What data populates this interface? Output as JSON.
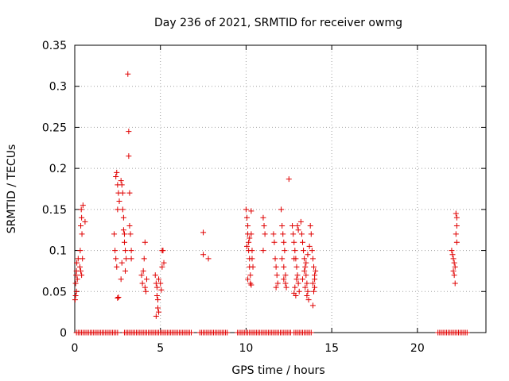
{
  "chart_data": {
    "type": "scatter",
    "title": "Day 236 of 2021, SRMTID for receiver owmg",
    "xlabel": "GPS time / hours",
    "ylabel": "SRMTID / TECUs",
    "xlim": [
      0,
      24
    ],
    "ylim": [
      0,
      0.35
    ],
    "xticks": [
      0,
      5,
      10,
      15,
      20
    ],
    "yticks": [
      0,
      0.05,
      0.1,
      0.15,
      0.2,
      0.25,
      0.3,
      0.35
    ],
    "xtick_labels": [
      "0",
      "5",
      "10",
      "15",
      "20"
    ],
    "ytick_labels": [
      "0",
      "0.05",
      "0.1",
      "0.15",
      "0.2",
      "0.25",
      "0.3",
      "0.35"
    ],
    "grid": true,
    "marker": "+",
    "color": "#e00000",
    "series": [
      {
        "name": "SRMTID",
        "points": [
          [
            0.05,
            0.045
          ],
          [
            0.05,
            0.06
          ],
          [
            0.08,
            0.07
          ],
          [
            0.1,
            0.05
          ],
          [
            0.1,
            0.075
          ],
          [
            0.12,
            0.085
          ],
          [
            0.15,
            0.065
          ],
          [
            0.2,
            0.09
          ],
          [
            0.02,
            0.04
          ],
          [
            0.3,
            0.08
          ],
          [
            0.32,
            0.1
          ],
          [
            0.35,
            0.13
          ],
          [
            0.38,
            0.15
          ],
          [
            0.4,
            0.14
          ],
          [
            0.42,
            0.12
          ],
          [
            0.45,
            0.09
          ],
          [
            0.48,
            0.155
          ],
          [
            0.35,
            0.075
          ],
          [
            0.4,
            0.07
          ],
          [
            0.6,
            0.135
          ],
          [
            2.4,
            0.19
          ],
          [
            2.45,
            0.195
          ],
          [
            2.5,
            0.18
          ],
          [
            2.5,
            0.15
          ],
          [
            2.55,
            0.17
          ],
          [
            2.6,
            0.16
          ],
          [
            2.3,
            0.12
          ],
          [
            2.35,
            0.1
          ],
          [
            2.4,
            0.09
          ],
          [
            2.45,
            0.08
          ],
          [
            2.5,
            0.042
          ],
          [
            2.55,
            0.043
          ],
          [
            2.7,
            0.185
          ],
          [
            2.75,
            0.18
          ],
          [
            2.8,
            0.15
          ],
          [
            2.8,
            0.17
          ],
          [
            2.85,
            0.14
          ],
          [
            2.85,
            0.125
          ],
          [
            2.9,
            0.12
          ],
          [
            2.9,
            0.11
          ],
          [
            2.95,
            0.1
          ],
          [
            3.0,
            0.09
          ],
          [
            2.7,
            0.065
          ],
          [
            2.75,
            0.085
          ],
          [
            2.95,
            0.075
          ],
          [
            3.1,
            0.315
          ],
          [
            3.15,
            0.245
          ],
          [
            3.15,
            0.215
          ],
          [
            3.2,
            0.17
          ],
          [
            3.2,
            0.13
          ],
          [
            3.25,
            0.12
          ],
          [
            3.3,
            0.09
          ],
          [
            3.3,
            0.1
          ],
          [
            3.9,
            0.07
          ],
          [
            3.95,
            0.06
          ],
          [
            4.0,
            0.075
          ],
          [
            4.05,
            0.09
          ],
          [
            4.1,
            0.11
          ],
          [
            4.1,
            0.055
          ],
          [
            4.2,
            0.065
          ],
          [
            4.15,
            0.05
          ],
          [
            4.7,
            0.07
          ],
          [
            4.75,
            0.06
          ],
          [
            4.8,
            0.055
          ],
          [
            4.8,
            0.045
          ],
          [
            4.85,
            0.04
          ],
          [
            4.85,
            0.03
          ],
          [
            4.9,
            0.025
          ],
          [
            4.75,
            0.02
          ],
          [
            4.9,
            0.065
          ],
          [
            5.0,
            0.06
          ],
          [
            5.05,
            0.052
          ],
          [
            5.1,
            0.1
          ],
          [
            5.15,
            0.1
          ],
          [
            5.2,
            0.085
          ],
          [
            5.1,
            0.08
          ],
          [
            7.5,
            0.122
          ],
          [
            7.5,
            0.095
          ],
          [
            7.8,
            0.09
          ],
          [
            10.0,
            0.15
          ],
          [
            10.05,
            0.14
          ],
          [
            10.1,
            0.13
          ],
          [
            10.1,
            0.12
          ],
          [
            10.15,
            0.11
          ],
          [
            10.15,
            0.1
          ],
          [
            10.2,
            0.09
          ],
          [
            10.2,
            0.08
          ],
          [
            10.25,
            0.07
          ],
          [
            10.25,
            0.06
          ],
          [
            10.3,
            0.148
          ],
          [
            10.05,
            0.105
          ],
          [
            10.1,
            0.065
          ],
          [
            10.3,
            0.058
          ],
          [
            10.2,
            0.115
          ],
          [
            10.35,
            0.1
          ],
          [
            10.35,
            0.09
          ],
          [
            10.4,
            0.08
          ],
          [
            10.3,
            0.12
          ],
          [
            11.0,
            0.14
          ],
          [
            11.05,
            0.13
          ],
          [
            11.1,
            0.12
          ],
          [
            11.0,
            0.1
          ],
          [
            11.6,
            0.12
          ],
          [
            11.65,
            0.11
          ],
          [
            11.7,
            0.09
          ],
          [
            11.75,
            0.08
          ],
          [
            11.8,
            0.07
          ],
          [
            11.85,
            0.06
          ],
          [
            11.75,
            0.055
          ],
          [
            12.05,
            0.15
          ],
          [
            12.1,
            0.13
          ],
          [
            12.15,
            0.12
          ],
          [
            12.2,
            0.11
          ],
          [
            12.25,
            0.1
          ],
          [
            12.1,
            0.09
          ],
          [
            12.2,
            0.08
          ],
          [
            12.3,
            0.07
          ],
          [
            12.2,
            0.065
          ],
          [
            12.3,
            0.06
          ],
          [
            12.35,
            0.055
          ],
          [
            12.5,
            0.187
          ],
          [
            12.7,
            0.13
          ],
          [
            12.75,
            0.12
          ],
          [
            12.8,
            0.11
          ],
          [
            12.85,
            0.1
          ],
          [
            12.9,
            0.09
          ],
          [
            12.95,
            0.08
          ],
          [
            13.0,
            0.07
          ],
          [
            13.05,
            0.06
          ],
          [
            13.1,
            0.05
          ],
          [
            12.8,
            0.048
          ],
          [
            12.9,
            0.045
          ],
          [
            12.85,
            0.055
          ],
          [
            12.95,
            0.065
          ],
          [
            13.0,
            0.13
          ],
          [
            13.05,
            0.125
          ],
          [
            12.8,
            0.09
          ],
          [
            13.2,
            0.135
          ],
          [
            13.25,
            0.12
          ],
          [
            13.3,
            0.11
          ],
          [
            13.35,
            0.1
          ],
          [
            13.4,
            0.09
          ],
          [
            13.45,
            0.08
          ],
          [
            13.5,
            0.07
          ],
          [
            13.55,
            0.06
          ],
          [
            13.6,
            0.05
          ],
          [
            13.65,
            0.04
          ],
          [
            13.3,
            0.065
          ],
          [
            13.4,
            0.075
          ],
          [
            13.5,
            0.085
          ],
          [
            13.6,
            0.095
          ],
          [
            13.7,
            0.105
          ],
          [
            13.45,
            0.055
          ],
          [
            13.55,
            0.045
          ],
          [
            13.75,
            0.13
          ],
          [
            13.8,
            0.12
          ],
          [
            13.85,
            0.1
          ],
          [
            13.9,
            0.09
          ],
          [
            13.95,
            0.08
          ],
          [
            14.0,
            0.07
          ],
          [
            13.9,
            0.06
          ],
          [
            14.0,
            0.065
          ],
          [
            13.95,
            0.05
          ],
          [
            13.9,
            0.033
          ],
          [
            14.05,
            0.075
          ],
          [
            14.0,
            0.055
          ],
          [
            22.0,
            0.1
          ],
          [
            22.05,
            0.095
          ],
          [
            22.1,
            0.09
          ],
          [
            22.15,
            0.085
          ],
          [
            22.2,
            0.08
          ],
          [
            22.1,
            0.075
          ],
          [
            22.15,
            0.07
          ],
          [
            22.2,
            0.06
          ],
          [
            22.25,
            0.145
          ],
          [
            22.3,
            0.14
          ],
          [
            22.25,
            0.12
          ],
          [
            22.3,
            0.11
          ],
          [
            22.3,
            0.13
          ]
        ]
      }
    ],
    "zero_runs": [
      [
        0.1,
        2.5,
        0.1
      ],
      [
        2.9,
        5.4,
        0.1
      ],
      [
        5.5,
        6.8,
        0.1
      ],
      [
        7.3,
        8.9,
        0.1
      ],
      [
        9.5,
        12.6,
        0.1
      ],
      [
        12.8,
        13.8,
        0.1
      ],
      [
        21.2,
        22.9,
        0.1
      ]
    ]
  }
}
